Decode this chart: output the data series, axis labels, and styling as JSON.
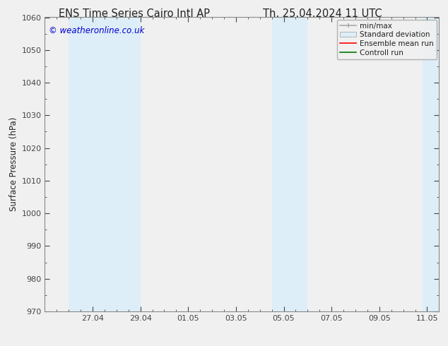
{
  "title_left": "ENS Time Series Cairo Intl AP",
  "title_right": "Th. 25.04.2024 11 UTC",
  "ylabel": "Surface Pressure (hPa)",
  "ylim": [
    970,
    1060
  ],
  "yticks": [
    970,
    980,
    990,
    1000,
    1010,
    1020,
    1030,
    1040,
    1050,
    1060
  ],
  "xlim_start": 0,
  "xlim_end": 16.5,
  "xtick_labels": [
    "27.04",
    "29.04",
    "01.05",
    "03.05",
    "05.05",
    "07.05",
    "09.05",
    "11.05"
  ],
  "xtick_positions": [
    2,
    4,
    6,
    8,
    10,
    12,
    14,
    16
  ],
  "shaded_bands": [
    {
      "x_start": 1.0,
      "x_end": 4.0
    },
    {
      "x_start": 9.5,
      "x_end": 11.0
    },
    {
      "x_start": 15.8,
      "x_end": 16.5
    }
  ],
  "shaded_color": "#ddeef8",
  "background_color": "#f0f0f0",
  "plot_bg_color": "#f0f0f0",
  "watermark_text": "© weatheronline.co.uk",
  "watermark_color": "#0000cc",
  "spine_color": "#888888",
  "tick_color": "#444444",
  "label_color": "#222222",
  "title_color": "#222222",
  "font_size_title": 10.5,
  "font_size_axis": 8.5,
  "font_size_tick": 8,
  "font_size_legend": 7.5,
  "font_size_watermark": 8.5
}
